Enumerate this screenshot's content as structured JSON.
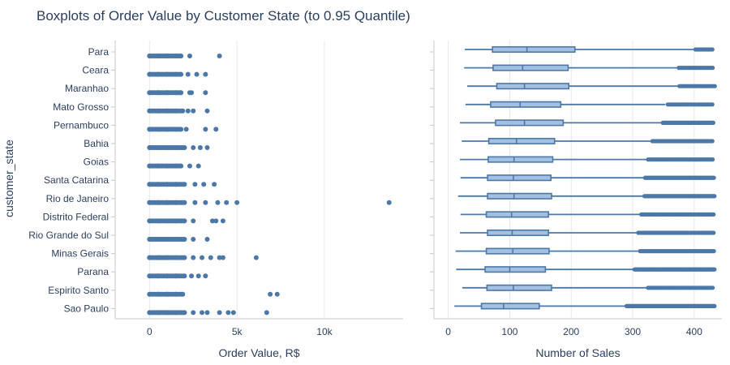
{
  "title": "Boxplots of Order Value by Customer State (to 0.95 Quantile)",
  "ylabel": "customer_state",
  "colors": {
    "marker": "#4c78a8",
    "box_fill": "#a4c0e0",
    "box_line": "#4c78a8",
    "grid": "#e8e8e8",
    "axis": "#c8c8c8"
  },
  "chart_data": [
    {
      "type": "strip",
      "title": "",
      "xlabel": "Order Value, R$",
      "xlim": [
        -1500,
        14500
      ],
      "xticks": [
        0,
        5000,
        10000
      ],
      "xtick_labels": [
        "0",
        "5k",
        "10k"
      ],
      "categories": [
        "Para",
        "Ceara",
        "Maranhao",
        "Mato Grosso",
        "Pernambuco",
        "Bahia",
        "Goias",
        "Santa Catarina",
        "Rio de Janeiro",
        "Distrito Federal",
        "Rio Grande do Sul",
        "Minas Gerais",
        "Parana",
        "Espirito Santo",
        "Sao Paulo"
      ],
      "series": [
        {
          "values": [
            0,
            500,
            1000,
            1500,
            1800,
            2300,
            4000
          ]
        },
        {
          "values": [
            0,
            500,
            1000,
            1500,
            1800,
            2200,
            2700,
            3200
          ]
        },
        {
          "values": [
            0,
            500,
            1000,
            1500,
            1800,
            2300,
            2400,
            3200
          ]
        },
        {
          "values": [
            0,
            500,
            1000,
            1500,
            1900,
            2200,
            2500,
            3300
          ]
        },
        {
          "values": [
            0,
            500,
            1000,
            1500,
            1800,
            2100,
            3200,
            3800
          ]
        },
        {
          "values": [
            0,
            500,
            1000,
            1500,
            2000,
            2500,
            2900,
            3300
          ]
        },
        {
          "values": [
            0,
            500,
            1000,
            1500,
            1800,
            2300,
            2800
          ]
        },
        {
          "values": [
            0,
            500,
            1000,
            1500,
            2000,
            2600,
            3100,
            3700
          ]
        },
        {
          "values": [
            0,
            500,
            1000,
            1500,
            2000,
            2600,
            3200,
            3900,
            4400,
            5000,
            13700
          ]
        },
        {
          "values": [
            0,
            500,
            1000,
            1500,
            2000,
            2500,
            3600,
            3800,
            4200
          ]
        },
        {
          "values": [
            0,
            500,
            1000,
            1500,
            2000,
            2500,
            3300
          ]
        },
        {
          "values": [
            0,
            500,
            1000,
            1500,
            2000,
            2500,
            3000,
            3500,
            4000,
            4200,
            6100
          ]
        },
        {
          "values": [
            0,
            500,
            1000,
            1500,
            2000,
            2400,
            2800,
            3200
          ]
        },
        {
          "values": [
            0,
            500,
            1000,
            1500,
            1900,
            6900,
            7300
          ]
        },
        {
          "values": [
            0,
            500,
            1000,
            1500,
            2000,
            2500,
            3000,
            3300,
            4000,
            4500,
            4800,
            6700
          ]
        }
      ]
    },
    {
      "type": "box",
      "title": "",
      "xlabel": "Number of Sales",
      "xlim": [
        -10,
        445
      ],
      "xticks": [
        0,
        100,
        200,
        300,
        400
      ],
      "xtick_labels": [
        "0",
        "100",
        "200",
        "300",
        "400"
      ],
      "categories": [
        "Para",
        "Ceara",
        "Maranhao",
        "Mato Grosso",
        "Pernambuco",
        "Bahia",
        "Goias",
        "Santa Catarina",
        "Rio de Janeiro",
        "Distrito Federal",
        "Rio Grande do Sul",
        "Minas Gerais",
        "Parana",
        "Espirito Santo",
        "Sao Paulo"
      ],
      "boxes": [
        {
          "min": 27,
          "q1": 72,
          "median": 128,
          "q3": 206,
          "whisker_high": 400,
          "outliers_from": 402,
          "outliers_to": 430,
          "dense": false
        },
        {
          "min": 26,
          "q1": 73,
          "median": 121,
          "q3": 195,
          "whisker_high": 372,
          "outliers_from": 375,
          "outliers_to": 432,
          "dense": false
        },
        {
          "min": 31,
          "q1": 79,
          "median": 124,
          "q3": 196,
          "whisker_high": 373,
          "outliers_from": 376,
          "outliers_to": 434,
          "dense": false
        },
        {
          "min": 28,
          "q1": 69,
          "median": 117,
          "q3": 183,
          "whisker_high": 353,
          "outliers_from": 357,
          "outliers_to": 430,
          "dense": false
        },
        {
          "min": 19,
          "q1": 77,
          "median": 124,
          "q3": 187,
          "whisker_high": 346,
          "outliers_from": 349,
          "outliers_to": 431,
          "dense": true
        },
        {
          "min": 22,
          "q1": 66,
          "median": 111,
          "q3": 173,
          "whisker_high": 330,
          "outliers_from": 332,
          "outliers_to": 431,
          "dense": false
        },
        {
          "min": 19,
          "q1": 65,
          "median": 107,
          "q3": 170,
          "whisker_high": 322,
          "outliers_from": 325,
          "outliers_to": 432,
          "dense": false
        },
        {
          "min": 20,
          "q1": 64,
          "median": 106,
          "q3": 167,
          "whisker_high": 318,
          "outliers_from": 320,
          "outliers_to": 432,
          "dense": true
        },
        {
          "min": 16,
          "q1": 64,
          "median": 107,
          "q3": 168,
          "whisker_high": 317,
          "outliers_from": 319,
          "outliers_to": 433,
          "dense": true
        },
        {
          "min": 20,
          "q1": 62,
          "median": 103,
          "q3": 163,
          "whisker_high": 312,
          "outliers_from": 314,
          "outliers_to": 433,
          "dense": false
        },
        {
          "min": 19,
          "q1": 64,
          "median": 104,
          "q3": 163,
          "whisker_high": 306,
          "outliers_from": 309,
          "outliers_to": 433,
          "dense": false
        },
        {
          "min": 12,
          "q1": 62,
          "median": 105,
          "q3": 164,
          "whisker_high": 310,
          "outliers_from": 312,
          "outliers_to": 433,
          "dense": false
        },
        {
          "min": 13,
          "q1": 60,
          "median": 100,
          "q3": 158,
          "whisker_high": 300,
          "outliers_from": 303,
          "outliers_to": 433,
          "dense": true
        },
        {
          "min": 23,
          "q1": 63,
          "median": 106,
          "q3": 168,
          "whisker_high": 322,
          "outliers_from": 325,
          "outliers_to": 432,
          "dense": false
        },
        {
          "min": 10,
          "q1": 54,
          "median": 90,
          "q3": 148,
          "whisker_high": 288,
          "outliers_from": 290,
          "outliers_to": 433,
          "dense": true
        }
      ]
    }
  ]
}
